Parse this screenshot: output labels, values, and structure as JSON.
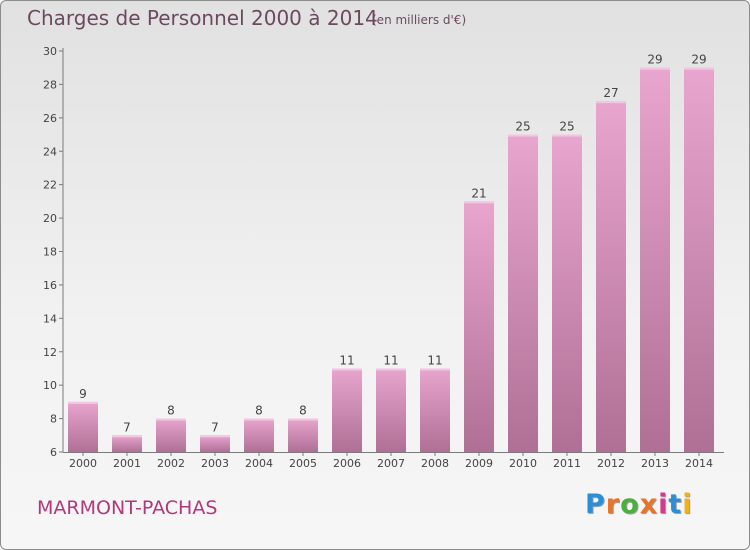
{
  "title": "Charges de Personnel 2000 à 2014",
  "subtitle": "(en milliers d'€)",
  "commune": "MARMONT-PACHAS",
  "brand": {
    "letters": [
      "P",
      "r",
      "o",
      "x",
      "i",
      "t",
      "i"
    ],
    "colors": [
      "#2a8fd6",
      "#e8742a",
      "#4cae3c",
      "#e8742a",
      "#d43a8a",
      "#2a8fd6",
      "#f0b21c"
    ]
  },
  "colors": {
    "bar_top": "#e8a6cf",
    "bar_bottom": "#b06f95",
    "text": "#6b4a60",
    "accent": "#b0397c"
  },
  "chart_data": {
    "type": "bar",
    "title": "Charges de Personnel 2000 à 2014",
    "subtitle": "(en milliers d'€)",
    "categories": [
      "2000",
      "2001",
      "2002",
      "2003",
      "2004",
      "2005",
      "2006",
      "2007",
      "2008",
      "2009",
      "2010",
      "2011",
      "2012",
      "2013",
      "2014"
    ],
    "values": [
      9,
      7,
      8,
      7,
      8,
      8,
      11,
      11,
      11,
      21,
      25,
      25,
      27,
      29,
      29
    ],
    "ylim": [
      6,
      30
    ],
    "yticks": [
      6,
      8,
      10,
      12,
      14,
      16,
      18,
      20,
      22,
      24,
      26,
      28,
      30
    ],
    "grid": false,
    "data_labels": true
  }
}
